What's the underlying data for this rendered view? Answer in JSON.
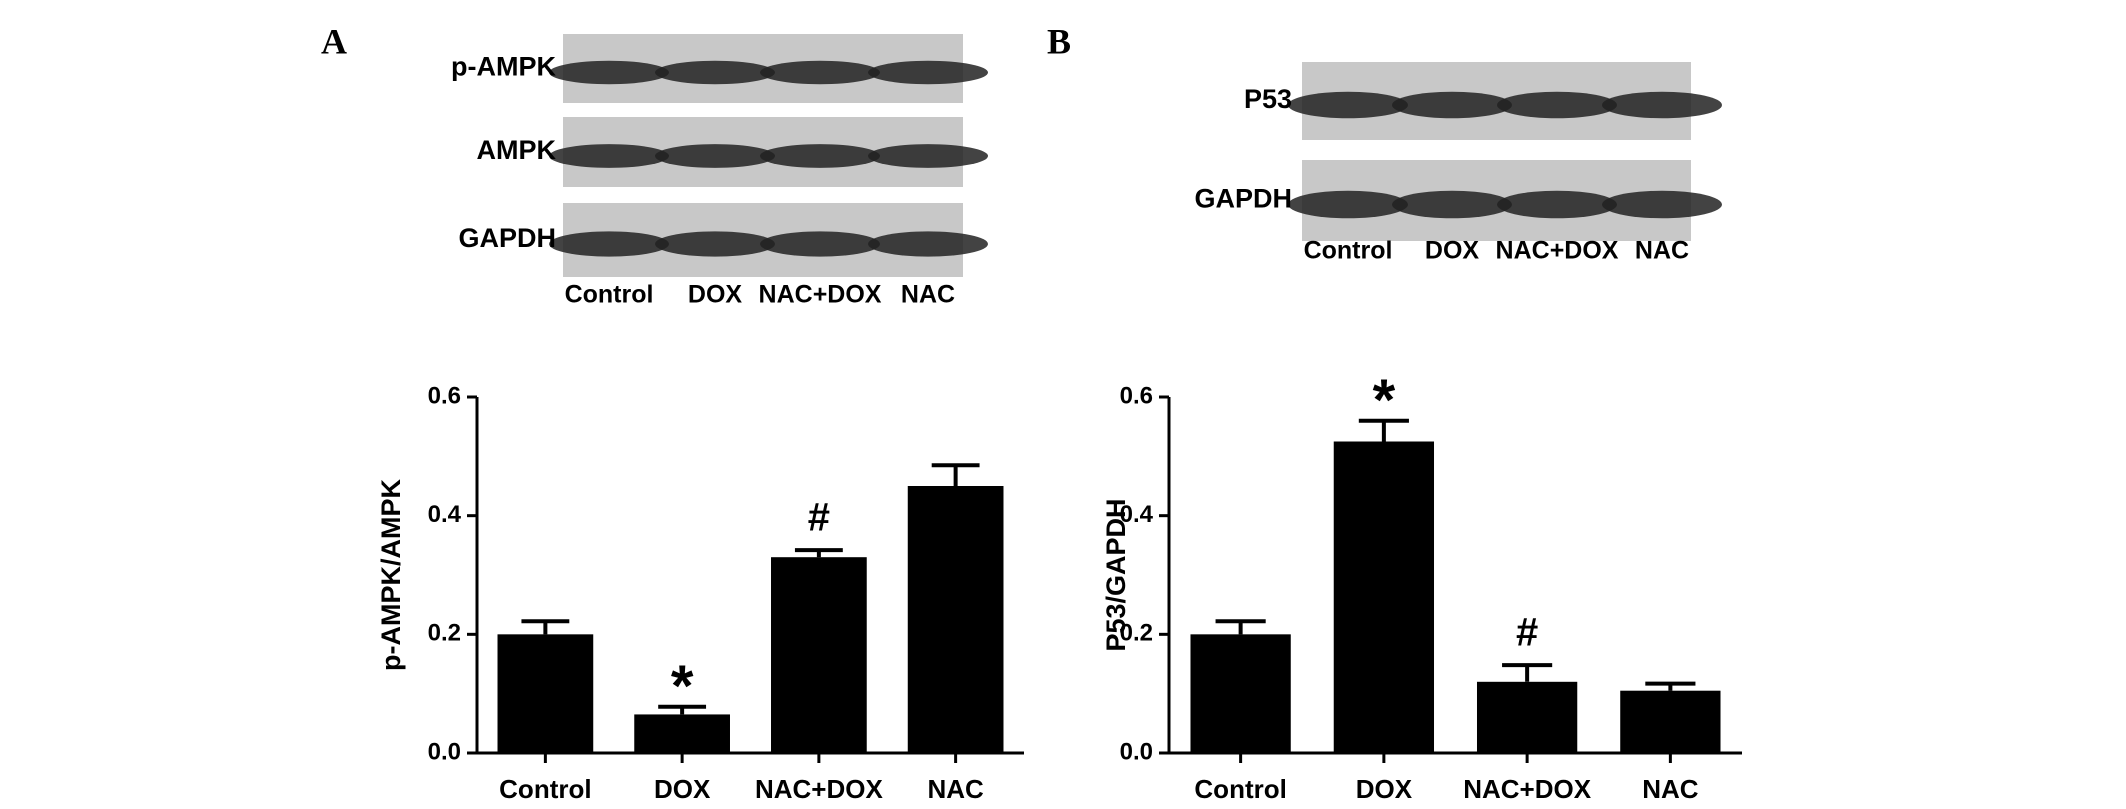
{
  "chart_data": [
    {
      "type": "bar",
      "panel": "A",
      "ylabel": "p-AMPK/AMPK",
      "blot_rows": [
        "p-AMPK",
        "AMPK",
        "GAPDH"
      ],
      "blot_lanes": [
        "Control",
        "DOX",
        "NAC+DOX",
        "NAC"
      ],
      "categories": [
        "Control",
        "DOX",
        "NAC+DOX",
        "NAC"
      ],
      "values": [
        0.2,
        0.065,
        0.33,
        0.45
      ],
      "errors": [
        0.022,
        0.013,
        0.012,
        0.035
      ],
      "annotations": [
        null,
        "*",
        "#",
        null
      ],
      "color": "#000000",
      "ylim": [
        0,
        0.6
      ],
      "yticks": [
        {
          "value": 0,
          "label": "0.0"
        },
        0.2,
        0.4,
        0.6
      ]
    },
    {
      "type": "bar",
      "panel": "B",
      "ylabel": "P53/GAPDH",
      "blot_rows": [
        "P53",
        "GAPDH"
      ],
      "blot_lanes": [
        "Control",
        "DOX",
        "NAC+DOX",
        "NAC"
      ],
      "categories": [
        "Control",
        "DOX",
        "NAC+DOX",
        "NAC"
      ],
      "values": [
        0.2,
        0.525,
        0.12,
        0.105
      ],
      "errors": [
        0.022,
        0.035,
        0.028,
        0.012
      ],
      "annotations": [
        null,
        "*",
        "#",
        null
      ],
      "color": "#000000",
      "ylim": [
        0,
        0.6
      ],
      "yticks": [
        {
          "value": 0,
          "label": "0.0"
        },
        0.2,
        0.4,
        0.6
      ]
    }
  ]
}
